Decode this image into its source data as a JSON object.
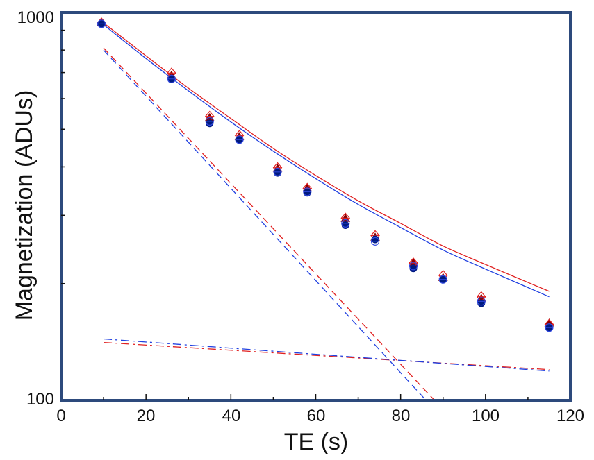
{
  "chart_data": {
    "type": "scatter",
    "title": "",
    "xlabel": "TE (s)",
    "ylabel": "Magnetization (ADUs)",
    "xlim": [
      0,
      120
    ],
    "ylim": [
      100,
      1000
    ],
    "yscale": "log",
    "x_ticks": [
      "0",
      "20",
      "40",
      "60",
      "80",
      "100",
      "120"
    ],
    "y_ticks": [
      "100",
      "1000"
    ],
    "frame_color": "#2d4a7c",
    "series": [
      {
        "name": "red filled markers",
        "color": "#8b0000",
        "marker": "filled-triangle",
        "x": [
          9.5,
          26,
          35,
          42,
          51,
          58,
          67,
          74,
          83,
          90,
          99,
          115
        ],
        "y": [
          940,
          688,
          535,
          478,
          396,
          352,
          294,
          263,
          226,
          207,
          183,
          158
        ]
      },
      {
        "name": "red open markers",
        "color": "#e02020",
        "marker": "open-diamond",
        "x": [
          9.5,
          26,
          35,
          42,
          51,
          58,
          67,
          74,
          83,
          90,
          99,
          115
        ],
        "y": [
          940,
          698,
          540,
          482,
          398,
          352,
          295,
          266,
          226,
          210,
          185,
          157
        ]
      },
      {
        "name": "blue filled markers",
        "color": "#001a80",
        "marker": "filled-circle",
        "x": [
          9.5,
          26,
          35,
          42,
          51,
          58,
          67,
          74,
          83,
          90,
          99,
          115
        ],
        "y": [
          935,
          672,
          518,
          470,
          386,
          343,
          283,
          260,
          219,
          205,
          178,
          154
        ]
      },
      {
        "name": "blue open markers",
        "color": "#3048e0",
        "marker": "open-circle",
        "x": [
          9.5,
          26,
          35,
          42,
          51,
          58,
          67,
          74,
          83,
          90,
          99,
          115
        ],
        "y": [
          935,
          674,
          524,
          470,
          388,
          345,
          286,
          257,
          222,
          205,
          180,
          154
        ]
      }
    ],
    "fit_lines": [
      {
        "name": "red total fit",
        "color": "#e02020",
        "style": "solid",
        "x": [
          10,
          20,
          30,
          40,
          50,
          60,
          70,
          80,
          90,
          100,
          115
        ],
        "y": [
          940,
          773,
          638,
          533,
          446,
          380,
          327,
          286,
          250,
          224,
          191
        ]
      },
      {
        "name": "blue total fit",
        "color": "#2040e0",
        "style": "solid",
        "x": [
          10,
          20,
          30,
          40,
          50,
          60,
          70,
          80,
          90,
          100,
          115
        ],
        "y": [
          930,
          761,
          628,
          522,
          439,
          373,
          320,
          279,
          244,
          218,
          185
        ]
      },
      {
        "name": "red fast component",
        "color": "#e02020",
        "style": "dashed",
        "x": [
          10,
          88
        ],
        "y": [
          810,
          100
        ]
      },
      {
        "name": "blue fast component",
        "color": "#2040e0",
        "style": "dashed",
        "x": [
          10,
          86
        ],
        "y": [
          800,
          100
        ]
      },
      {
        "name": "red slow component",
        "color": "#e02020",
        "style": "dash-dot",
        "x": [
          10,
          115
        ],
        "y": [
          141,
          120
        ]
      },
      {
        "name": "blue slow component",
        "color": "#2040e0",
        "style": "dash-dot",
        "x": [
          10,
          115
        ],
        "y": [
          144,
          119
        ]
      }
    ]
  }
}
